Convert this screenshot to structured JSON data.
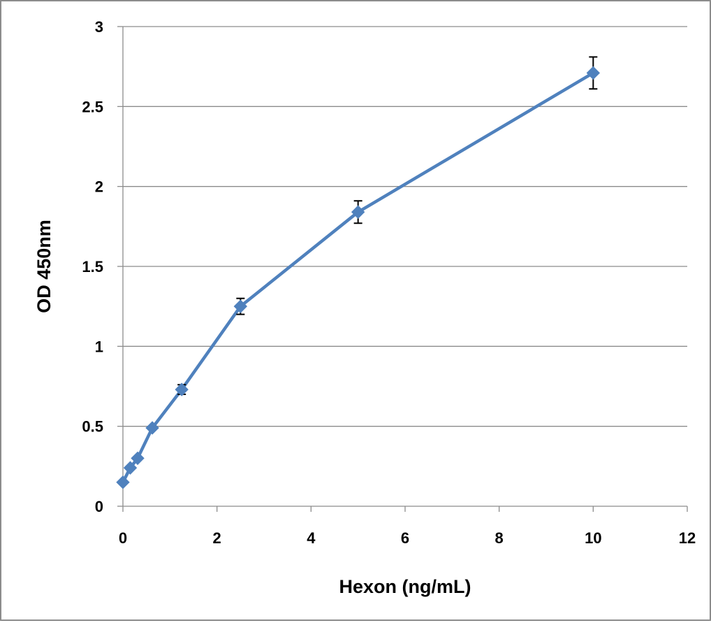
{
  "chart_data": {
    "type": "line",
    "xlabel": "Hexon (ng/mL)",
    "ylabel": "OD 450nm",
    "xlim": [
      0,
      12
    ],
    "ylim": [
      0,
      3
    ],
    "x_ticks": [
      "0",
      "2",
      "4",
      "6",
      "8",
      "10",
      "12"
    ],
    "y_ticks": [
      "0",
      "0.5",
      "1",
      "1.5",
      "2",
      "2.5",
      "3"
    ],
    "grid": "horizontal",
    "legend": "none",
    "series": [
      {
        "x": [
          0,
          0.156,
          0.3125,
          0.625,
          1.25,
          2.5,
          5,
          10
        ],
        "y": [
          0.15,
          0.24,
          0.3,
          0.49,
          0.73,
          1.25,
          1.84,
          2.71
        ],
        "error": [
          0.01,
          0.01,
          0.01,
          0.01,
          0.03,
          0.05,
          0.07,
          0.1
        ],
        "color": "#4f81bd",
        "marker": "diamond"
      }
    ],
    "colors": {
      "line": "#4f81bd",
      "grid": "#8c8c8c",
      "axis": "#8c8c8c",
      "frame": "#8c8c8c",
      "error_bar": "#000000"
    }
  }
}
